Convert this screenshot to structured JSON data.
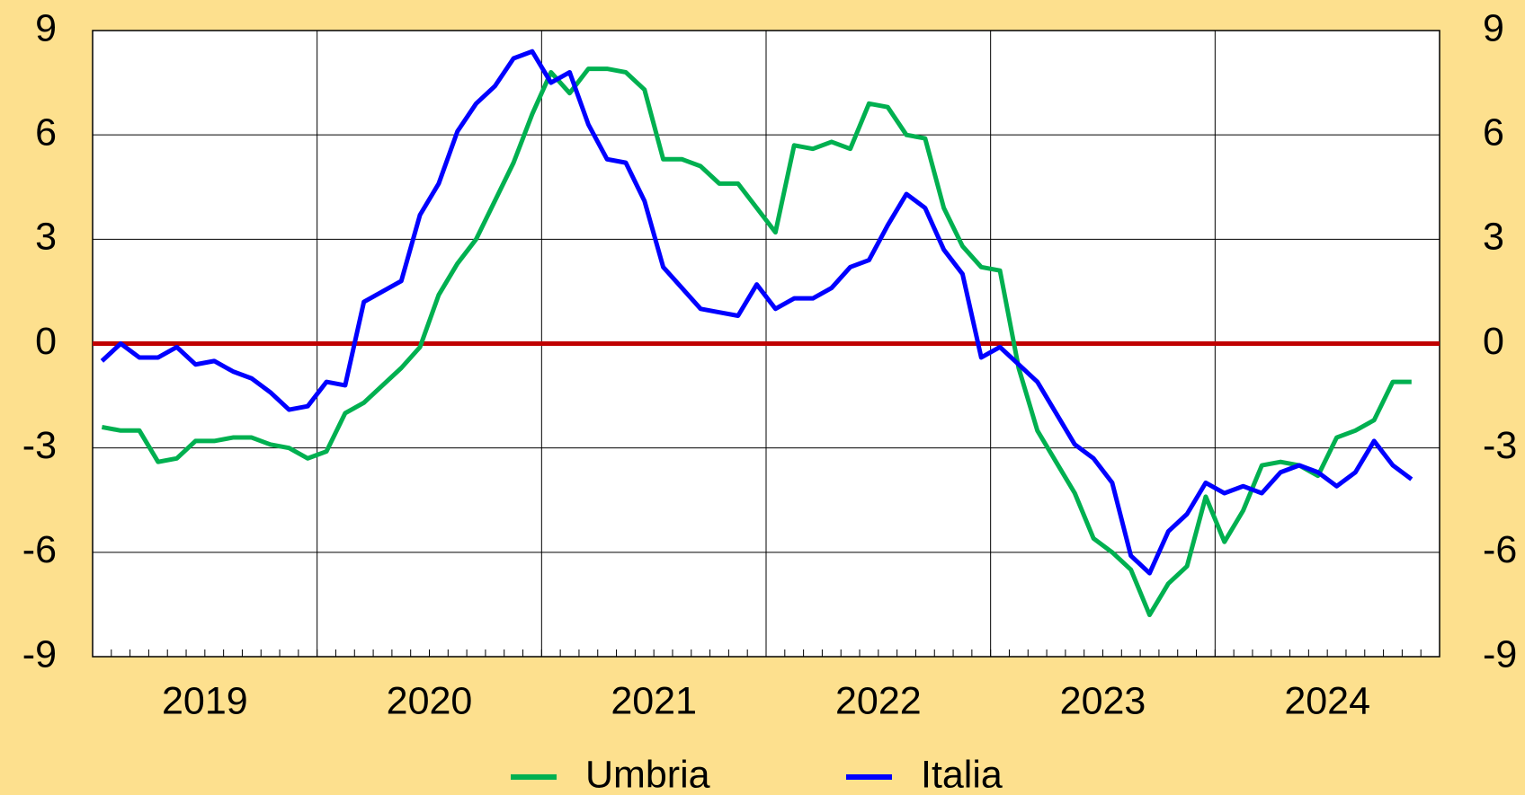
{
  "chart_data": {
    "type": "line",
    "categories": [
      "2019",
      null,
      null,
      null,
      null,
      null,
      null,
      null,
      null,
      null,
      null,
      null,
      "2020",
      null,
      null,
      null,
      null,
      null,
      null,
      null,
      null,
      null,
      null,
      null,
      "2021",
      null,
      null,
      null,
      null,
      null,
      null,
      null,
      null,
      null,
      null,
      null,
      "2022",
      null,
      null,
      null,
      null,
      null,
      null,
      null,
      null,
      null,
      null,
      null,
      "2023",
      null,
      null,
      null,
      null,
      null,
      null,
      null,
      null,
      null,
      null,
      null,
      "2024",
      null,
      null,
      null,
      null,
      null,
      null,
      null,
      null,
      null,
      null
    ],
    "series": [
      {
        "name": "Umbria",
        "color": "#00b050",
        "values": [
          -2.4,
          -2.5,
          -2.5,
          -3.4,
          -3.3,
          -2.8,
          -2.8,
          -2.7,
          -2.7,
          -2.9,
          -3.0,
          -3.3,
          -3.1,
          -2.0,
          -1.7,
          -1.2,
          -0.7,
          -0.1,
          1.4,
          2.3,
          3.0,
          4.1,
          5.2,
          6.6,
          7.8,
          7.2,
          7.9,
          7.9,
          7.8,
          7.3,
          5.3,
          5.3,
          5.1,
          4.6,
          4.6,
          3.9,
          3.2,
          5.7,
          5.6,
          5.8,
          5.6,
          6.9,
          6.8,
          6.0,
          5.9,
          3.9,
          2.8,
          2.2,
          2.1,
          -0.7,
          -2.5,
          -3.4,
          -4.3,
          -5.6,
          -6.0,
          -6.5,
          -7.8,
          -6.9,
          -6.4,
          -4.4,
          -5.7,
          -4.8,
          -3.5,
          -3.4,
          -3.5,
          -3.8,
          -2.7,
          -2.5,
          -2.2,
          -1.1,
          -1.1
        ]
      },
      {
        "name": "Italia",
        "color": "#0000ff",
        "values": [
          -0.5,
          0.0,
          -0.4,
          -0.4,
          -0.1,
          -0.6,
          -0.5,
          -0.8,
          -1.0,
          -1.4,
          -1.9,
          -1.8,
          -1.1,
          -1.2,
          1.2,
          1.5,
          1.8,
          3.7,
          4.6,
          6.1,
          6.9,
          7.4,
          8.2,
          8.4,
          7.5,
          7.8,
          6.3,
          5.3,
          5.2,
          4.1,
          2.2,
          1.6,
          1.0,
          0.9,
          0.8,
          1.7,
          1.0,
          1.3,
          1.3,
          1.6,
          2.2,
          2.4,
          3.4,
          4.3,
          3.9,
          2.7,
          2.0,
          -0.4,
          -0.1,
          -0.6,
          -1.1,
          -2.0,
          -2.9,
          -3.3,
          -4.0,
          -6.1,
          -6.6,
          -5.4,
          -4.9,
          -4.0,
          -4.3,
          -4.1,
          -4.3,
          -3.7,
          -3.5,
          -3.7,
          -4.1,
          -3.7,
          -2.8,
          -3.5,
          -3.9
        ]
      }
    ],
    "ylim": [
      -9,
      9
    ],
    "yticks": [
      -9,
      -6,
      -3,
      0,
      3,
      6,
      9
    ],
    "y2lim": [
      -9,
      9
    ],
    "y2ticks": [
      -9,
      -6,
      -3,
      0,
      3,
      6,
      9
    ],
    "grid": true,
    "zero_line_color": "#c00000",
    "legend": "bottom"
  }
}
